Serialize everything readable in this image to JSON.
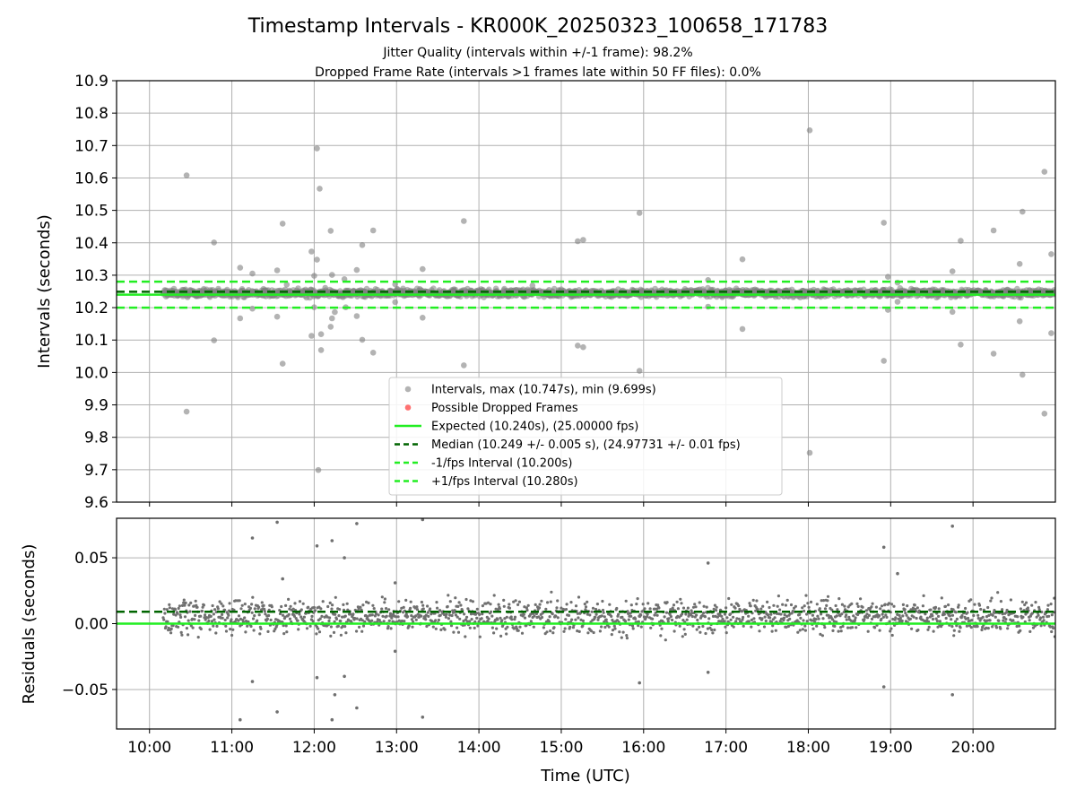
{
  "chart_data": {
    "type": "scatter",
    "title": "Timestamp Intervals - KR000K_20250323_100658_171783",
    "subtitle_lines": [
      "Jitter Quality (intervals within +/-1 frame): 98.2%",
      "Dropped Frame Rate (intervals >1 frames late within 50 FF files): 0.0%"
    ],
    "xlabel": "Time (UTC)",
    "x_ticks": [
      "10:00",
      "11:00",
      "12:00",
      "13:00",
      "14:00",
      "15:00",
      "16:00",
      "17:00",
      "18:00",
      "19:00",
      "20:00"
    ],
    "xlim": [
      "09:36",
      "21:00"
    ],
    "grid": true,
    "legend_location": "lower center",
    "top_panel": {
      "ylabel": "Intervals (seconds)",
      "ylim": [
        9.6,
        10.9
      ],
      "y_ticks": [
        "9.6",
        "9.7",
        "9.8",
        "9.9",
        "10.0",
        "10.1",
        "10.2",
        "10.3",
        "10.4",
        "10.5",
        "10.6",
        "10.7",
        "10.8",
        "10.9"
      ],
      "lines": {
        "expected": 10.24,
        "median": 10.249,
        "minus_1_fps": 10.2,
        "plus_1_fps": 10.28
      },
      "outliers": [
        [
          "10:27",
          10.608
        ],
        [
          "10:27",
          9.879
        ],
        [
          "10:47",
          10.401
        ],
        [
          "10:47",
          10.099
        ],
        [
          "11:06",
          10.323
        ],
        [
          "11:06",
          10.167
        ],
        [
          "11:15",
          10.305
        ],
        [
          "11:15",
          10.197
        ],
        [
          "11:33",
          10.315
        ],
        [
          "11:33",
          10.172
        ],
        [
          "11:37",
          10.459
        ],
        [
          "11:37",
          10.027
        ],
        [
          "11:40",
          10.271
        ],
        [
          "11:58",
          10.373
        ],
        [
          "11:58",
          10.113
        ],
        [
          "12:00",
          10.298
        ],
        [
          "12:00",
          10.201
        ],
        [
          "12:02",
          10.691
        ],
        [
          "12:02",
          10.348
        ],
        [
          "12:03",
          9.699
        ],
        [
          "12:04",
          10.567
        ],
        [
          "12:05",
          10.118
        ],
        [
          "12:05",
          10.069
        ],
        [
          "12:08",
          10.261
        ],
        [
          "12:12",
          10.437
        ],
        [
          "12:12",
          10.141
        ],
        [
          "12:13",
          10.301
        ],
        [
          "12:13",
          10.167
        ],
        [
          "12:15",
          10.186
        ],
        [
          "12:22",
          10.288
        ],
        [
          "12:23",
          10.201
        ],
        [
          "12:31",
          10.316
        ],
        [
          "12:31",
          10.174
        ],
        [
          "12:35",
          10.393
        ],
        [
          "12:35",
          10.101
        ],
        [
          "12:43",
          10.438
        ],
        [
          "12:43",
          10.061
        ],
        [
          "12:59",
          10.272
        ],
        [
          "12:59",
          10.217
        ],
        [
          "13:19",
          10.319
        ],
        [
          "13:19",
          10.169
        ],
        [
          "13:49",
          10.467
        ],
        [
          "13:49",
          10.022
        ],
        [
          "14:39",
          10.268
        ],
        [
          "15:12",
          10.405
        ],
        [
          "15:12",
          10.083
        ],
        [
          "15:16",
          10.409
        ],
        [
          "15:16",
          10.078
        ],
        [
          "15:57",
          10.492
        ],
        [
          "15:57",
          10.005
        ],
        [
          "16:47",
          10.285
        ],
        [
          "16:47",
          10.203
        ],
        [
          "17:12",
          10.349
        ],
        [
          "17:12",
          10.134
        ],
        [
          "18:01",
          10.747
        ],
        [
          "18:01",
          9.752
        ],
        [
          "18:55",
          10.462
        ],
        [
          "18:55",
          10.036
        ],
        [
          "18:58",
          10.295
        ],
        [
          "18:58",
          10.193
        ],
        [
          "19:05",
          10.277
        ],
        [
          "19:05",
          10.218
        ],
        [
          "19:45",
          10.312
        ],
        [
          "19:45",
          10.187
        ],
        [
          "19:51",
          10.406
        ],
        [
          "19:51",
          10.086
        ],
        [
          "20:15",
          10.438
        ],
        [
          "20:15",
          10.058
        ],
        [
          "20:34",
          10.335
        ],
        [
          "20:34",
          10.158
        ],
        [
          "20:36",
          10.496
        ],
        [
          "20:36",
          9.993
        ],
        [
          "20:52",
          10.619
        ],
        [
          "20:52",
          9.873
        ],
        [
          "20:57",
          10.365
        ],
        [
          "20:57",
          10.121
        ]
      ],
      "legend": [
        "Intervals, max (10.747s), min (9.699s)",
        "Possible Dropped Frames",
        "Expected (10.240s), (25.00000 fps)",
        "Median (10.249 +/- 0.005 s), (24.97731 +/- 0.01 fps)",
        "-1/fps Interval (10.200s)",
        "+1/fps Interval (10.280s)"
      ]
    },
    "bottom_panel": {
      "ylabel": "Residuals (seconds)",
      "ylim": [
        -0.08,
        0.08
      ],
      "y_ticks": [
        {
          "value": 0.05,
          "label": "0.05"
        },
        {
          "value": 0.0,
          "label": "0.00"
        },
        {
          "value": -0.05,
          "label": "−0.05"
        }
      ],
      "lines": {
        "expected": 0.0,
        "median": 0.009
      },
      "outliers": [
        [
          "11:15",
          0.065
        ],
        [
          "11:15",
          -0.044
        ],
        [
          "11:33",
          0.077
        ],
        [
          "11:33",
          -0.067
        ],
        [
          "11:37",
          0.034
        ],
        [
          "12:02",
          0.059
        ],
        [
          "12:02",
          -0.041
        ],
        [
          "12:13",
          0.063
        ],
        [
          "12:13",
          -0.073
        ],
        [
          "12:15",
          -0.054
        ],
        [
          "12:22",
          0.05
        ],
        [
          "12:22",
          -0.04
        ],
        [
          "12:31",
          0.076
        ],
        [
          "12:31",
          -0.064
        ],
        [
          "12:59",
          0.031
        ],
        [
          "12:59",
          -0.021
        ],
        [
          "13:19",
          0.079
        ],
        [
          "13:19",
          -0.071
        ],
        [
          "15:57",
          -0.045
        ],
        [
          "16:47",
          0.046
        ],
        [
          "16:47",
          -0.037
        ],
        [
          "18:55",
          0.058
        ],
        [
          "18:55",
          -0.048
        ],
        [
          "19:05",
          0.038
        ],
        [
          "19:45",
          0.074
        ],
        [
          "19:45",
          -0.054
        ],
        [
          "11:06",
          -0.073
        ]
      ]
    },
    "series_colors": {
      "intervals": "#808080",
      "dropped": "#ff4d4d",
      "expected": "#22ee22",
      "median": "#006400",
      "interval_bounds": "#22ee22"
    }
  }
}
